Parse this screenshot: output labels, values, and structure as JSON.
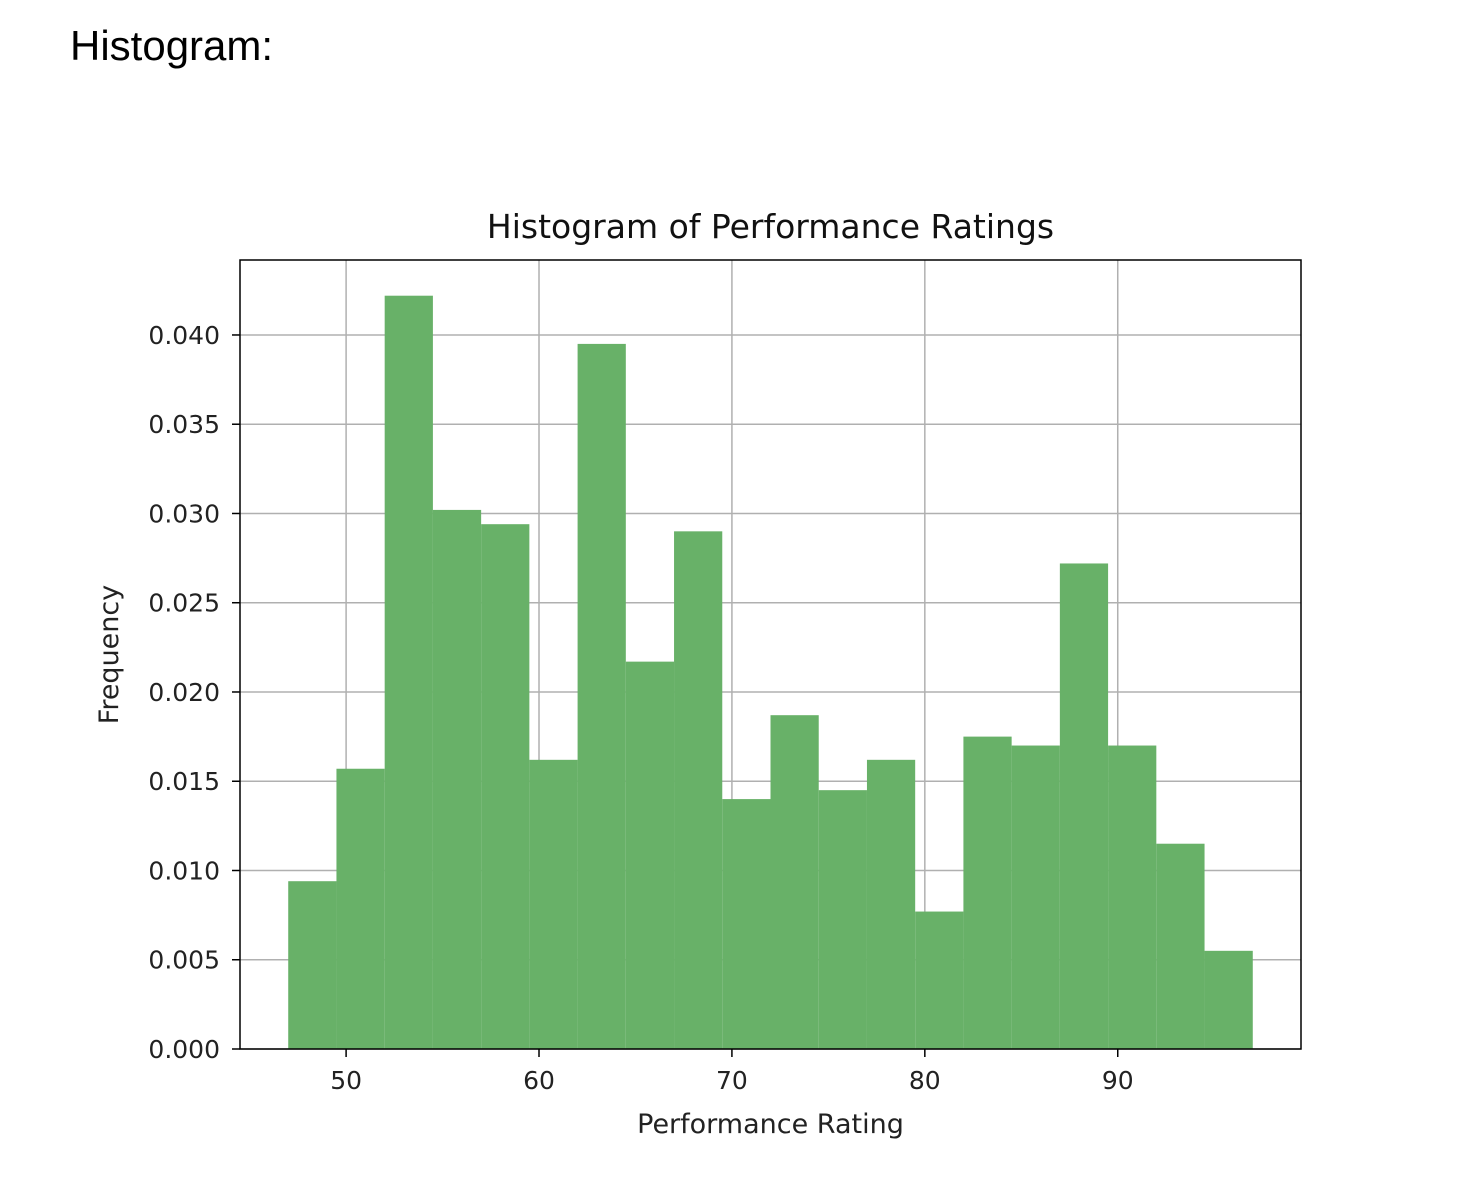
{
  "heading": "Histogram:",
  "chart_data": {
    "type": "bar",
    "title": "Histogram of Performance Ratings",
    "xlabel": "Performance Rating",
    "ylabel": "Frequency",
    "xlim": [
      44.5,
      99.5
    ],
    "ylim": [
      0,
      0.0442
    ],
    "x_ticks": [
      50,
      60,
      70,
      80,
      90
    ],
    "y_ticks": [
      0.0,
      0.005,
      0.01,
      0.015,
      0.02,
      0.025,
      0.03,
      0.035,
      0.04
    ],
    "y_tick_labels": [
      "0.000",
      "0.005",
      "0.010",
      "0.015",
      "0.020",
      "0.025",
      "0.030",
      "0.035",
      "0.040"
    ],
    "grid": true,
    "bar_color": "#68b168",
    "bin_edges": [
      47.0,
      49.5,
      52.0,
      54.5,
      57.0,
      59.5,
      62.0,
      64.5,
      67.0,
      69.5,
      72.0,
      74.5,
      77.0,
      79.5,
      82.0,
      84.5,
      87.0,
      89.5,
      92.0,
      94.5,
      97.0
    ],
    "values": [
      0.0094,
      0.0157,
      0.0422,
      0.0302,
      0.0294,
      0.0162,
      0.0395,
      0.0217,
      0.029,
      0.014,
      0.0187,
      0.0145,
      0.0162,
      0.0077,
      0.0175,
      0.017,
      0.0272,
      0.017,
      0.0115,
      0.0055
    ]
  }
}
